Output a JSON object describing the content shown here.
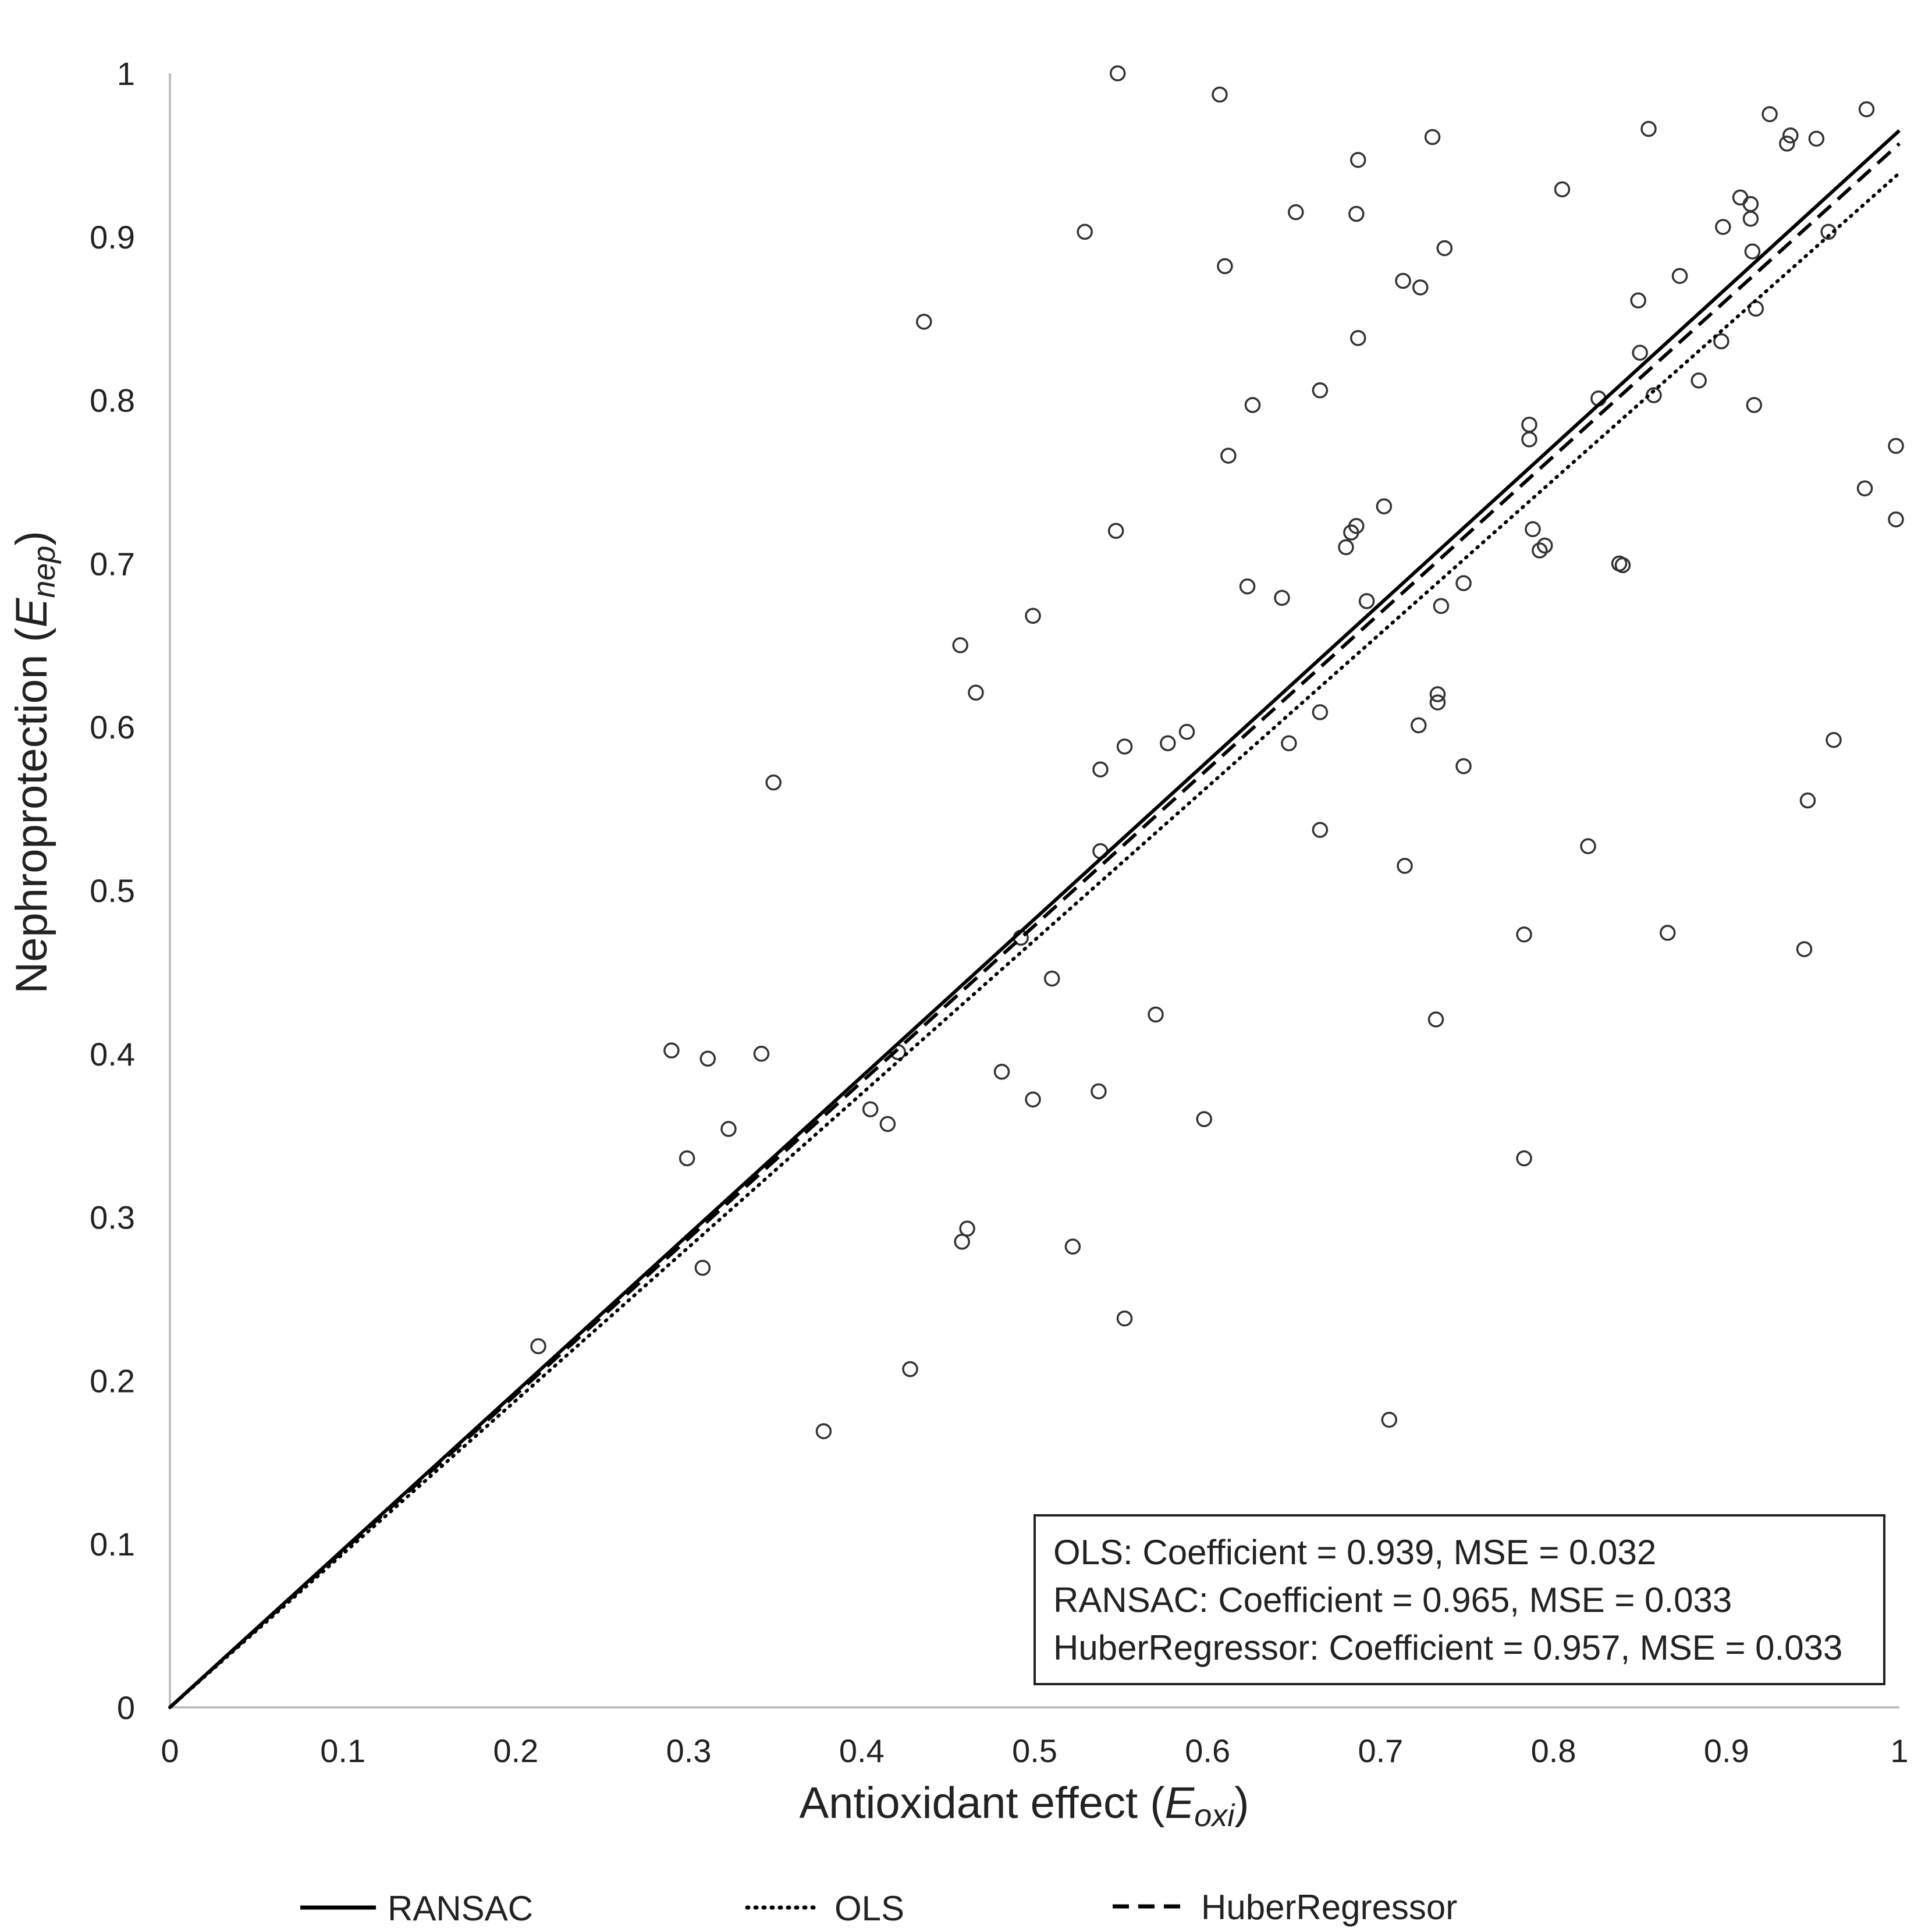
{
  "chart_data": {
    "type": "scatter",
    "title": "",
    "xlabel": {
      "main": "Antioxidant effect (",
      "var": "E",
      "sub": "oxi",
      "end": ")"
    },
    "ylabel": {
      "main": "Nephroprotection (",
      "var": "E",
      "sub": "nep",
      "end": ")"
    },
    "xlim": [
      0,
      1
    ],
    "ylim": [
      0,
      1
    ],
    "xticks": [
      "0",
      "0.1",
      "0.2",
      "0.3",
      "0.4",
      "0.5",
      "0.6",
      "0.7",
      "0.8",
      "0.9",
      "1"
    ],
    "yticks": [
      "0",
      "0.1",
      "0.2",
      "0.3",
      "0.4",
      "0.5",
      "0.6",
      "0.7",
      "0.8",
      "0.9",
      "1"
    ],
    "grid": false,
    "legend_position": "bottom",
    "points": [
      [
        0.213,
        0.221
      ],
      [
        0.29,
        0.402
      ],
      [
        0.299,
        0.336
      ],
      [
        0.308,
        0.269
      ],
      [
        0.311,
        0.397
      ],
      [
        0.323,
        0.354
      ],
      [
        0.342,
        0.4
      ],
      [
        0.349,
        0.566
      ],
      [
        0.378,
        0.169
      ],
      [
        0.405,
        0.366
      ],
      [
        0.415,
        0.357
      ],
      [
        0.421,
        0.401
      ],
      [
        0.428,
        0.207
      ],
      [
        0.436,
        0.848
      ],
      [
        0.457,
        0.65
      ],
      [
        0.458,
        0.285
      ],
      [
        0.461,
        0.293
      ],
      [
        0.466,
        0.621
      ],
      [
        0.481,
        0.389
      ],
      [
        0.492,
        0.471
      ],
      [
        0.499,
        0.372
      ],
      [
        0.499,
        0.668
      ],
      [
        0.51,
        0.446
      ],
      [
        0.522,
        0.282
      ],
      [
        0.529,
        0.903
      ],
      [
        0.537,
        0.377
      ],
      [
        0.538,
        0.574
      ],
      [
        0.538,
        0.524
      ],
      [
        0.547,
        0.72
      ],
      [
        0.548,
        1.0
      ],
      [
        0.552,
        0.588
      ],
      [
        0.552,
        0.238
      ],
      [
        0.57,
        0.424
      ],
      [
        0.577,
        0.59
      ],
      [
        0.588,
        0.597
      ],
      [
        0.598,
        0.36
      ],
      [
        0.607,
        0.987
      ],
      [
        0.61,
        0.882
      ],
      [
        0.612,
        0.766
      ],
      [
        0.623,
        0.686
      ],
      [
        0.626,
        0.797
      ],
      [
        0.643,
        0.679
      ],
      [
        0.647,
        0.59
      ],
      [
        0.651,
        0.915
      ],
      [
        0.665,
        0.609
      ],
      [
        0.665,
        0.537
      ],
      [
        0.665,
        0.806
      ],
      [
        0.68,
        0.71
      ],
      [
        0.683,
        0.719
      ],
      [
        0.686,
        0.723
      ],
      [
        0.686,
        0.914
      ],
      [
        0.687,
        0.838
      ],
      [
        0.687,
        0.947
      ],
      [
        0.692,
        0.677
      ],
      [
        0.702,
        0.735
      ],
      [
        0.705,
        0.176
      ],
      [
        0.713,
        0.873
      ],
      [
        0.714,
        0.515
      ],
      [
        0.722,
        0.601
      ],
      [
        0.723,
        0.869
      ],
      [
        0.73,
        0.961
      ],
      [
        0.732,
        0.421
      ],
      [
        0.733,
        0.615
      ],
      [
        0.733,
        0.62
      ],
      [
        0.735,
        0.674
      ],
      [
        0.737,
        0.893
      ],
      [
        0.748,
        0.576
      ],
      [
        0.748,
        0.688
      ],
      [
        0.783,
        0.473
      ],
      [
        0.783,
        0.336
      ],
      [
        0.786,
        0.776
      ],
      [
        0.786,
        0.785
      ],
      [
        0.788,
        0.721
      ],
      [
        0.792,
        0.708
      ],
      [
        0.795,
        0.711
      ],
      [
        0.805,
        0.929
      ],
      [
        0.82,
        0.527
      ],
      [
        0.826,
        0.801
      ],
      [
        0.838,
        0.7
      ],
      [
        0.84,
        0.699
      ],
      [
        0.849,
        0.861
      ],
      [
        0.85,
        0.829
      ],
      [
        0.855,
        0.966
      ],
      [
        0.858,
        0.803
      ],
      [
        0.866,
        0.474
      ],
      [
        0.873,
        0.876
      ],
      [
        0.884,
        0.812
      ],
      [
        0.897,
        0.836
      ],
      [
        0.898,
        0.906
      ],
      [
        0.908,
        0.924
      ],
      [
        0.914,
        0.92
      ],
      [
        0.914,
        0.911
      ],
      [
        0.915,
        0.891
      ],
      [
        0.916,
        0.797
      ],
      [
        0.917,
        0.856
      ],
      [
        0.925,
        0.975
      ],
      [
        0.935,
        0.957
      ],
      [
        0.937,
        0.962
      ],
      [
        0.945,
        0.464
      ],
      [
        0.947,
        0.555
      ],
      [
        0.952,
        0.96
      ],
      [
        0.959,
        0.903
      ],
      [
        0.962,
        0.592
      ],
      [
        0.98,
        0.746
      ],
      [
        0.981,
        0.978
      ],
      [
        0.998,
        0.772
      ],
      [
        0.998,
        0.727
      ]
    ],
    "series": [
      {
        "name": "RANSAC",
        "coefficient": 0.965,
        "style": "solid"
      },
      {
        "name": "OLS",
        "coefficient": 0.939,
        "style": "dotted"
      },
      {
        "name": "HuberRegressor",
        "coefficient": 0.957,
        "style": "dashed"
      }
    ],
    "annotation": [
      "OLS: Coefficient = 0.939, MSE = 0.032",
      "RANSAC: Coefficient = 0.965, MSE = 0.033",
      "HuberRegressor: Coefficient = 0.957, MSE = 0.033"
    ],
    "colors": {
      "line": "#000000",
      "axis": "#bfbfbf",
      "text": "#222222",
      "marker_stroke": "#333333"
    }
  }
}
